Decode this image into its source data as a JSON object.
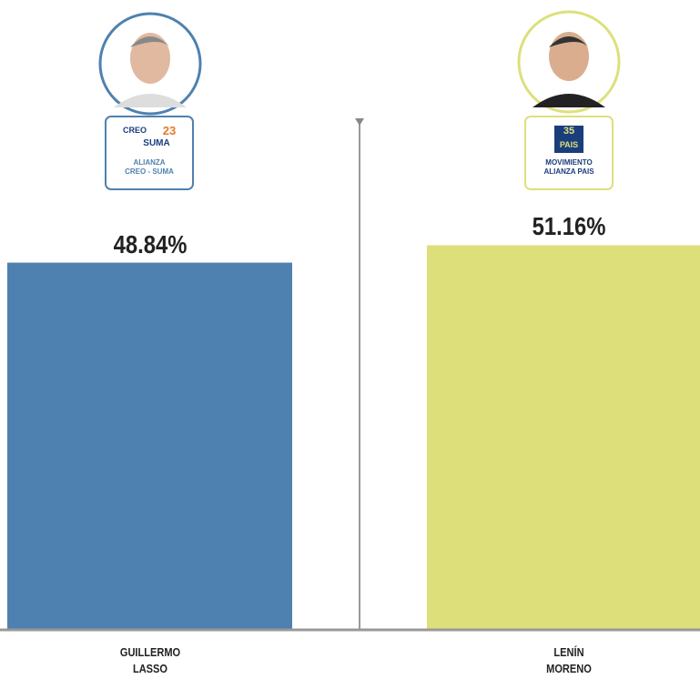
{
  "chart_data": {
    "type": "bar",
    "categories": [
      "GUILLERMO LASSO",
      "LENÍN MORENO"
    ],
    "values": [
      48.84,
      51.16
    ],
    "value_labels": [
      "48.84%",
      "51.16%"
    ],
    "colors": [
      "#4f81b0",
      "#dde07a"
    ],
    "parties": [
      {
        "logo_text": [
          "CREO",
          "23",
          "SUMA"
        ],
        "name_lines": [
          "ALIANZA",
          "CREO - SUMA"
        ]
      },
      {
        "logo_text": [
          "35",
          "PAIS"
        ],
        "name_lines": [
          "MOVIMIENTO",
          "ALIANZA PAIS"
        ]
      }
    ]
  }
}
